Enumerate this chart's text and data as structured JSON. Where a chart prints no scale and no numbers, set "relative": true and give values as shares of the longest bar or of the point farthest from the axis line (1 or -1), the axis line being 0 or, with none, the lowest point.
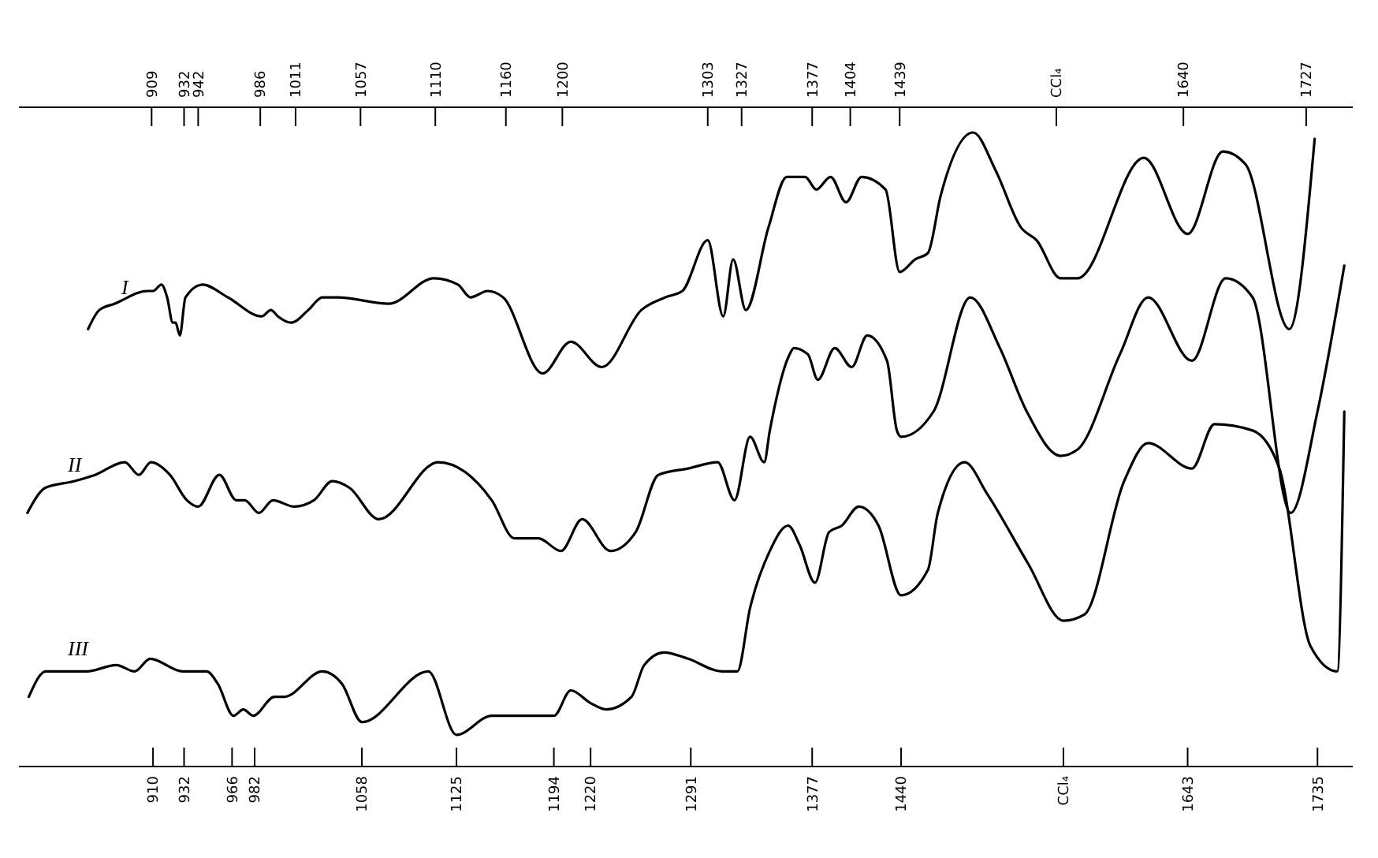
{
  "chart_data": {
    "type": "line",
    "relative": true,
    "xlim": [
      815,
      1760
    ],
    "xticks": [
      910,
      932,
      966,
      982,
      1058,
      1125,
      1194,
      1220,
      1291,
      1377,
      1440,
      {
        "value": 1555,
        "label": "CCl₄"
      },
      1643,
      1735
    ],
    "x2lim": [
      815,
      1760
    ],
    "x2ticks": [
      909,
      932,
      942,
      986,
      1011,
      1057,
      1110,
      1160,
      1200,
      1303,
      1327,
      1377,
      1404,
      1439,
      {
        "value": 1550,
        "label": "CCl₄"
      },
      1640,
      1727
    ],
    "series": [
      {
        "name": "I",
        "color": "#000000",
        "x": [
          864,
          872,
          883,
          906,
          910,
          916,
          920,
          924,
          926,
          929,
          933,
          945,
          963,
          987,
          993.5,
          998.5,
          1008,
          1020,
          1030,
          1041,
          1077,
          1109,
          1126,
          1135,
          1147,
          1158,
          1186,
          1206,
          1228,
          1256,
          1273,
          1285,
          1303,
          1314,
          1321,
          1330,
          1346,
          1359,
          1372,
          1380,
          1390,
          1401,
          1412,
          1429,
          1439,
          1450,
          1459,
          1468,
          1491,
          1507,
          1525,
          1536,
          1553,
          1565,
          1612,
          1643,
          1668,
          1684,
          1715,
          1733
        ],
        "values": [
          0.69,
          0.72,
          0.73,
          0.75,
          0.75,
          0.76,
          0.74,
          0.7,
          0.7,
          0.68,
          0.74,
          0.76,
          0.74,
          0.71,
          0.72,
          0.71,
          0.7,
          0.72,
          0.74,
          0.74,
          0.73,
          0.77,
          0.76,
          0.74,
          0.75,
          0.74,
          0.62,
          0.67,
          0.63,
          0.72,
          0.74,
          0.75,
          0.83,
          0.71,
          0.8,
          0.72,
          0.85,
          0.93,
          0.93,
          0.91,
          0.93,
          0.89,
          0.93,
          0.91,
          0.78,
          0.8,
          0.81,
          0.9,
          1,
          0.94,
          0.85,
          0.83,
          0.77,
          0.77,
          0.96,
          0.84,
          0.97,
          0.95,
          0.69,
          0.99
        ]
      },
      {
        "name": "II",
        "color": "#000000",
        "x": [
          821,
          834,
          854,
          869,
          890,
          900,
          908.5,
          922,
          934,
          942,
          957,
          969,
          975,
          985,
          995,
          1010,
          1024,
          1037,
          1049,
          1070,
          1112,
          1150,
          1166,
          1183,
          1199,
          1214,
          1234,
          1252,
          1268,
          1289,
          1310,
          1322,
          1333,
          1343,
          1347,
          1361,
          1364,
          1374,
          1381,
          1393,
          1405,
          1416,
          1430,
          1437,
          1440,
          1463,
          1489,
          1510,
          1529,
          1553,
          1565,
          1595,
          1615,
          1646,
          1670,
          1689,
          1716,
          1735,
          1754
        ],
        "values": [
          0.4,
          0.44,
          0.45,
          0.46,
          0.48,
          0.46,
          0.48,
          0.46,
          0.42,
          0.41,
          0.46,
          0.42,
          0.42,
          0.4,
          0.42,
          0.41,
          0.42,
          0.45,
          0.44,
          0.39,
          0.48,
          0.42,
          0.36,
          0.36,
          0.34,
          0.39,
          0.34,
          0.37,
          0.46,
          0.47,
          0.48,
          0.42,
          0.52,
          0.48,
          0.53,
          0.65,
          0.66,
          0.65,
          0.61,
          0.66,
          0.63,
          0.68,
          0.64,
          0.53,
          0.52,
          0.56,
          0.74,
          0.66,
          0.56,
          0.49,
          0.5,
          0.65,
          0.74,
          0.64,
          0.77,
          0.74,
          0.4,
          0.56,
          0.79
        ]
      },
      {
        "name": "III",
        "color": "#000000",
        "x": [
          822,
          834,
          863,
          884,
          897,
          908,
          931,
          939,
          948,
          956,
          967,
          974,
          981,
          996,
          1003,
          1030,
          1044,
          1058,
          1105,
          1125,
          1150,
          1183,
          1194,
          1206,
          1220,
          1231,
          1249,
          1258,
          1272,
          1289,
          1313,
          1324,
          1333,
          1347,
          1360,
          1368,
          1379,
          1389,
          1398,
          1410,
          1424,
          1440,
          1459,
          1466,
          1485,
          1501,
          1530,
          1555,
          1570,
          1598,
          1615,
          1646,
          1662,
          1689,
          1708,
          1730,
          1749,
          1754
        ],
        "values": [
          0.11,
          0.15,
          0.15,
          0.16,
          0.15,
          0.17,
          0.15,
          0.15,
          0.15,
          0.13,
          0.08,
          0.09,
          0.08,
          0.11,
          0.11,
          0.15,
          0.13,
          0.07,
          0.15,
          0.05,
          0.08,
          0.08,
          0.08,
          0.12,
          0.1,
          0.09,
          0.11,
          0.16,
          0.18,
          0.17,
          0.15,
          0.15,
          0.25,
          0.34,
          0.38,
          0.35,
          0.29,
          0.37,
          0.38,
          0.41,
          0.38,
          0.27,
          0.31,
          0.4,
          0.48,
          0.43,
          0.32,
          0.23,
          0.24,
          0.45,
          0.51,
          0.47,
          0.54,
          0.53,
          0.47,
          0.19,
          0.15,
          0.56
        ]
      }
    ]
  }
}
